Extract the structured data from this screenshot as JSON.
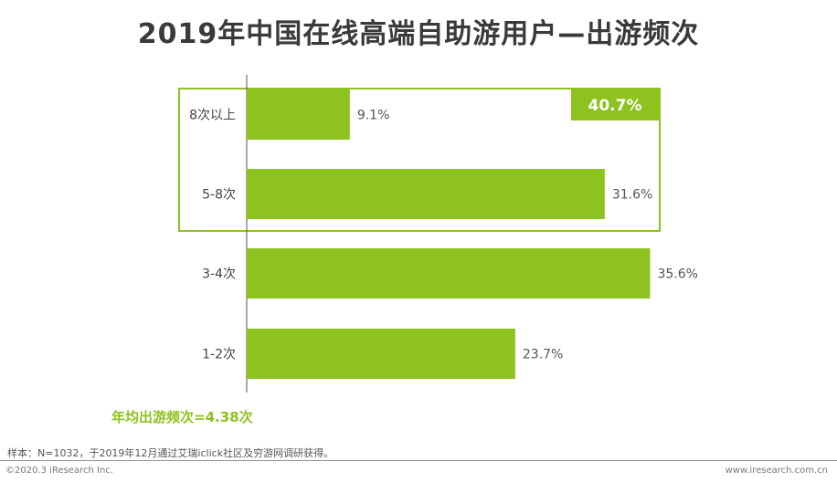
{
  "title": "2019年中国在线高端自助游用户—出游频次",
  "chart_data": {
    "type": "bar",
    "orientation": "horizontal",
    "categories": [
      "8次以上",
      "5-8次",
      "3-4次",
      "1-2次"
    ],
    "values": [
      9.1,
      31.6,
      35.6,
      23.7
    ],
    "value_labels": [
      "9.1%",
      "31.6%",
      "35.6%",
      "23.7%"
    ],
    "bar_color": "#8dc21f",
    "highlight": {
      "categories": [
        "8次以上",
        "5-8次"
      ],
      "label": "40.7%",
      "color": "#8dc21f"
    }
  },
  "summary": "年均出游频次=4.38次",
  "note": "样本：N=1032，于2019年12月通过艾瑞iclick社区及穷游网调研获得。",
  "copyright": "©2020.3 iResearch Inc.",
  "site": "www.iresearch.com.cn"
}
